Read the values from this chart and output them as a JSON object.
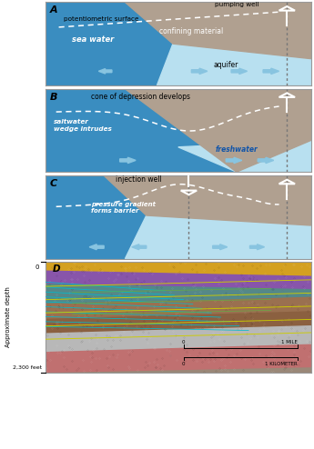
{
  "bg_color": "#ffffff",
  "sea_color": "#3a8dc0",
  "sea_dark": "#2266aa",
  "aquifer_color": "#b8e0f0",
  "confining_color": "#b0a090",
  "confining_dark": "#a09080",
  "dashed_color": "white",
  "arrow_color": "#88c4e0",
  "well_line_color": "#666666",
  "well_arrow_color": "white",
  "text_black": "black",
  "text_white": "white",
  "text_blue": "#1155aa",
  "panel_A": {
    "label": "A",
    "t_surface": "potentiometric surface",
    "t_well": "pumping well",
    "t_sea": "sea water",
    "t_confining": "confining material",
    "t_aquifer": "aquifer"
  },
  "panel_B": {
    "label": "B",
    "t_title": "cone of depression develops",
    "t_salt": "saltwater\nwedge intrudes",
    "t_fresh": "freshwater"
  },
  "panel_C": {
    "label": "C",
    "t_inj": "injection well",
    "t_barrier": "pressure gradient\nforms barrier"
  },
  "panel_D": {
    "label": "D",
    "t_depth": "Approximate depth",
    "t_bottom": "2,300 feet",
    "t_zero": "0",
    "t_mile": "1 MILE",
    "t_km": "1 KILOMETER",
    "col_orange": "#d4a020",
    "col_purple": "#8855aa",
    "col_teal": "#558888",
    "col_brown": "#8b6040",
    "col_dbrown": "#9a7050",
    "col_gray": "#b8b8b8",
    "col_pink": "#c07070",
    "col_cyan": "#00bbcc",
    "col_yellow": "#cccc00",
    "col_green": "#66aa44"
  }
}
